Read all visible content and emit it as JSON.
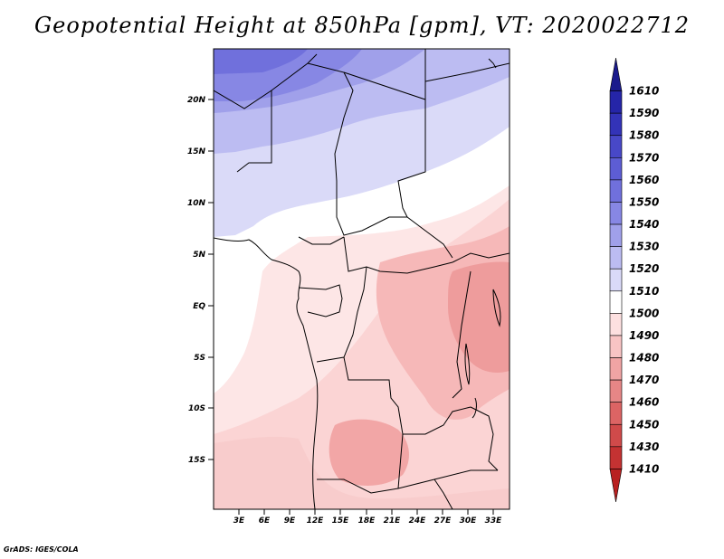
{
  "title": "Geopotential Height at 850hPa [gpm], VT: 2020022712",
  "credit": "GrADS: IGES/COLA",
  "map": {
    "variable": "Geopotential Height",
    "level": "850hPa",
    "units": "gpm",
    "valid_time": "2020022712",
    "lat_ticks": [
      "20N",
      "15N",
      "10N",
      "5N",
      "EQ",
      "5S",
      "10S",
      "15S"
    ],
    "lon_ticks": [
      "3E",
      "6E",
      "9E",
      "12E",
      "15E",
      "18E",
      "21E",
      "24E",
      "27E",
      "30E",
      "33E"
    ]
  },
  "colorbar": {
    "labels": [
      "1610",
      "1590",
      "1580",
      "1570",
      "1560",
      "1550",
      "1540",
      "1530",
      "1520",
      "1510",
      "1500",
      "1490",
      "1480",
      "1470",
      "1460",
      "1450",
      "1430",
      "1410"
    ],
    "colors": [
      "#1a1a8c",
      "#2525a8",
      "#3333b8",
      "#4848c8",
      "#5d5dd4",
      "#7070dc",
      "#8787e4",
      "#a0a0ea",
      "#bcbcf2",
      "#dadaf8",
      "#ffffff",
      "#fde0e0",
      "#f8c4c4",
      "#f0a4a4",
      "#e68686",
      "#dc6464",
      "#d04a4a",
      "#c43232",
      "#b82020"
    ]
  }
}
